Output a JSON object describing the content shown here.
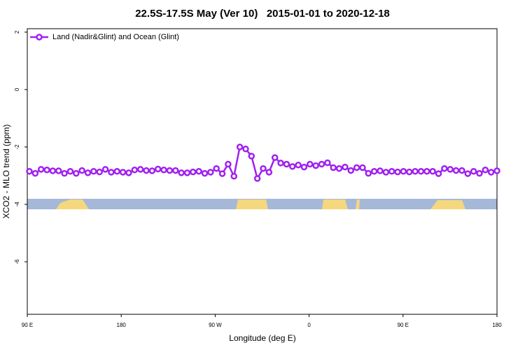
{
  "chart_data": {
    "type": "line",
    "title": "22.5S-17.5S May (Ver 10)   2015-01-01 to 2020-12-18",
    "x_label": "Longitude (deg E)",
    "y_label": "XCO2 - MLO trend (ppm)",
    "legend": "upper left",
    "xlim": [
      90,
      540
    ],
    "ylim": [
      -7.83,
      2.12
    ],
    "xticks": [
      {
        "value": 90,
        "label": "90 E"
      },
      {
        "value": 180,
        "label": "180"
      },
      {
        "value": 270,
        "label": "90 W"
      },
      {
        "value": 360,
        "label": "0"
      },
      {
        "value": 450,
        "label": "90 E"
      },
      {
        "value": 540,
        "label": "180"
      }
    ],
    "yticks": [
      -6,
      -4,
      -2,
      0,
      2
    ],
    "x": [
      92,
      97.6,
      103.2,
      108.8,
      114.4,
      120,
      125.6,
      131.2,
      136.8,
      142.4,
      148,
      153.6,
      159.2,
      164.8,
      170.4,
      176,
      181.6,
      187.2,
      192.8,
      198.4,
      204,
      209.6,
      215.2,
      220.8,
      226.4,
      232,
      237.6,
      243.2,
      248.8,
      254.4,
      260,
      265.6,
      271.2,
      276.8,
      282.4,
      288,
      293.6,
      299.2,
      304.8,
      310.4,
      316,
      321.6,
      327.2,
      332.8,
      338.4,
      344,
      349.6,
      355.2,
      360.8,
      366.4,
      372,
      377.6,
      383.2,
      388.8,
      394.4,
      400,
      405.6,
      411.2,
      416.8,
      422.4,
      428,
      433.6,
      439.2,
      444.8,
      450.4,
      456,
      461.6,
      467.2,
      472.8,
      478.4,
      484,
      489.6,
      495.2,
      500.8,
      506.4,
      512,
      517.6,
      523.2,
      528.8,
      534.4,
      540
    ],
    "series": [
      {
        "name": "Land (Nadir&Glint) and Ocean (Glint)",
        "color": "#a020f0",
        "values": [
          -2.85,
          -2.92,
          -2.78,
          -2.8,
          -2.83,
          -2.83,
          -2.92,
          -2.85,
          -2.92,
          -2.82,
          -2.9,
          -2.85,
          -2.87,
          -2.78,
          -2.88,
          -2.85,
          -2.88,
          -2.9,
          -2.8,
          -2.78,
          -2.82,
          -2.83,
          -2.77,
          -2.8,
          -2.82,
          -2.82,
          -2.9,
          -2.9,
          -2.87,
          -2.85,
          -2.92,
          -2.88,
          -2.75,
          -2.93,
          -2.6,
          -3.02,
          -2.0,
          -2.07,
          -2.32,
          -3.1,
          -2.75,
          -2.88,
          -2.37,
          -2.56,
          -2.6,
          -2.68,
          -2.63,
          -2.7,
          -2.6,
          -2.65,
          -2.6,
          -2.55,
          -2.72,
          -2.75,
          -2.7,
          -2.82,
          -2.72,
          -2.72,
          -2.92,
          -2.85,
          -2.83,
          -2.88,
          -2.85,
          -2.87,
          -2.85,
          -2.87,
          -2.85,
          -2.85,
          -2.85,
          -2.85,
          -2.93,
          -2.75,
          -2.78,
          -2.82,
          -2.82,
          -2.93,
          -2.85,
          -2.92,
          -2.8,
          -2.88,
          -2.83
        ]
      }
    ]
  }
}
